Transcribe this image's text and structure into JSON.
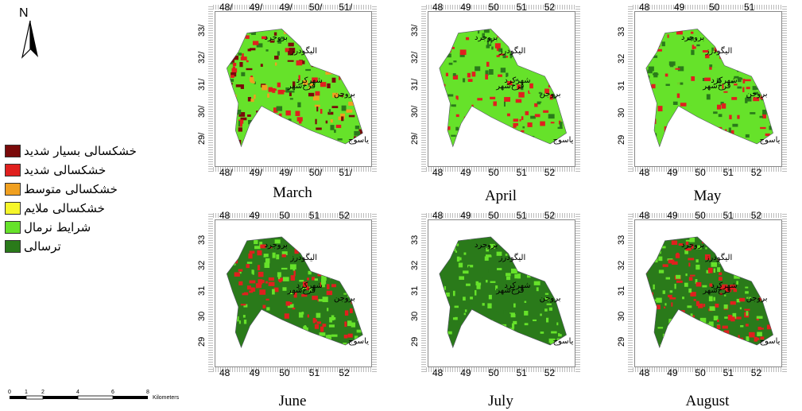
{
  "north": {
    "label": "N",
    "icon": "north-arrow-icon"
  },
  "legend": [
    {
      "label": "خشکسالی بسیار شدید",
      "color": "#7a0a0a"
    },
    {
      "label": "خشکسالی شدید",
      "color": "#e0201e"
    },
    {
      "label": "خشکسالی متوسط",
      "color": "#f0a020"
    },
    {
      "label": "خشکسالی ملایم",
      "color": "#f6f62a"
    },
    {
      "label": "شرایط نرمال",
      "color": "#66e22a"
    },
    {
      "label": "ترسالی",
      "color": "#2a7a1a"
    }
  ],
  "scalebar": {
    "ticks": [
      "0",
      "1",
      "2",
      "4",
      "6",
      "8"
    ],
    "unit": "Kilometers"
  },
  "panels": [
    {
      "title": "March",
      "top_ticks": [
        "48/",
        "49/",
        "49/",
        "50/",
        "51/"
      ],
      "bottom_ticks": [
        "48/",
        "49/",
        "49/",
        "50/",
        "51/"
      ],
      "left_ticks": [
        "33/",
        "32/",
        "31/",
        "30/",
        "29/"
      ],
      "cities": [
        "بروجرد",
        "الیگودرز",
        "شهرکرد",
        "فرخ‌شهر",
        "بروجن",
        "یاسوج"
      ]
    },
    {
      "title": "April",
      "top_ticks": [
        "48",
        "49",
        "50",
        "51",
        "52"
      ],
      "bottom_ticks": [
        "48",
        "49",
        "50",
        "51",
        "52"
      ],
      "left_ticks": [
        "33/",
        "32/",
        "31/",
        "30/",
        "29/"
      ],
      "cities": [
        "بروجرد",
        "الیگودرز",
        "شهرکرد",
        "فرخ‌شهر",
        "بروجن",
        "یاسوج"
      ]
    },
    {
      "title": "May",
      "top_ticks": [
        "48",
        "49",
        "50",
        "51"
      ],
      "bottom_ticks": [
        "48",
        "49",
        "50",
        "51",
        "52"
      ],
      "left_ticks": [
        "33",
        "32",
        "31",
        "30",
        "29"
      ],
      "cities": [
        "بروجرد",
        "الیگودرز",
        "شهرکرد",
        "فرخ‌شهر",
        "بروجن",
        "یاسوج"
      ]
    },
    {
      "title": "June",
      "top_ticks": [
        "48",
        "49",
        "50",
        "51",
        "52"
      ],
      "bottom_ticks": [
        "48",
        "49",
        "50",
        "51",
        "52"
      ],
      "left_ticks": [
        "33",
        "32",
        "31",
        "30",
        "29"
      ],
      "cities": [
        "بروجرد",
        "الیگودرز",
        "شهرکرد",
        "فرخ‌شهر",
        "بروجن",
        "یاسوج"
      ]
    },
    {
      "title": "July",
      "top_ticks": [
        "48",
        "49",
        "50",
        "51",
        "52"
      ],
      "bottom_ticks": [
        "48",
        "49",
        "50",
        "51",
        "52"
      ],
      "left_ticks": [
        "33",
        "32",
        "31",
        "30",
        "29"
      ],
      "cities": [
        "بروجرد",
        "الیگودرز",
        "شهرکرد",
        "فرخ‌شهر",
        "بروجن",
        "یاسوج"
      ]
    },
    {
      "title": "August",
      "top_ticks": [
        "48",
        "49",
        "50",
        "51",
        "52"
      ],
      "bottom_ticks": [
        "48",
        "49",
        "50",
        "51",
        "52"
      ],
      "left_ticks": [
        "33",
        "32",
        "31",
        "30",
        "29"
      ],
      "cities": [
        "بروجرد",
        "الیگودرز",
        "شهرکرد",
        "فرخ‌شهر",
        "بروجن",
        "یاسوج"
      ]
    }
  ]
}
